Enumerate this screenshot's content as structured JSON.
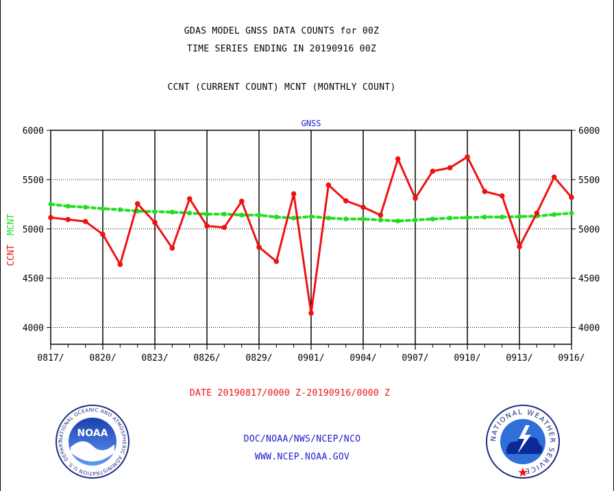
{
  "header": {
    "title_line1": "GDAS MODEL GNSS DATA COUNTS for 00Z",
    "title_line2": "TIME SERIES ENDING IN 20190916 00Z",
    "subtitle": "CCNT (CURRENT COUNT) MCNT (MONTHLY COUNT)"
  },
  "footer": {
    "date_range": "DATE 20190817/0000 Z-20190916/0000 Z",
    "org_line": "DOC/NOAA/NWS/NCEP/NCO",
    "url_line": "WWW.NCEP.NOAA.GOV"
  },
  "logos": {
    "noaa": {
      "text": "NOAA",
      "ring_text": "NATIONAL OCEANIC AND ATMOSPHERIC ADMINISTRATION U.S. DEPARTMENT OF COMMERCE"
    },
    "nws": {
      "ring_text": "NATIONAL WEATHER SERVICE"
    }
  },
  "chart_data": {
    "type": "line",
    "title": "GNSS",
    "ylabel_ccnt": "CCNT",
    "ylabel_mcnt": "MCNT",
    "ylim": [
      3830,
      6000
    ],
    "yticks": [
      4000,
      4500,
      5000,
      5500,
      6000
    ],
    "ytick_labels": [
      "4000",
      "4500",
      "5000",
      "5500",
      "6000"
    ],
    "x": [
      "0817",
      "0818",
      "0819",
      "0820",
      "0821",
      "0822",
      "0823",
      "0824",
      "0825",
      "0826",
      "0827",
      "0828",
      "0829",
      "0830",
      "0831",
      "0901",
      "0902",
      "0903",
      "0904",
      "0905",
      "0906",
      "0907",
      "0908",
      "0909",
      "0910",
      "0911",
      "0912",
      "0913",
      "0914",
      "0915",
      "0916"
    ],
    "xtick_labels": [
      "0817/",
      "0820/",
      "0823/",
      "0826/",
      "0829/",
      "0901/",
      "0904/",
      "0907/",
      "0910/",
      "0913/",
      "0916/"
    ],
    "grid": true,
    "colors": {
      "ccnt": "#ee1111",
      "mcnt": "#22dd22",
      "title": "#1a1acc",
      "footer_org": "#1a1acc",
      "footer_date": "#ee1111"
    },
    "series": [
      {
        "name": "CCNT",
        "values": [
          5115,
          5095,
          5075,
          4945,
          4640,
          5255,
          5065,
          4805,
          5305,
          5030,
          5015,
          5280,
          4815,
          4670,
          5355,
          4145,
          5445,
          5285,
          5220,
          5140,
          5710,
          5310,
          5585,
          5620,
          5730,
          5380,
          5335,
          4820,
          5160,
          5525,
          5320
        ]
      },
      {
        "name": "MCNT",
        "values": [
          5250,
          5230,
          5220,
          5205,
          5195,
          5180,
          5175,
          5170,
          5160,
          5150,
          5150,
          5140,
          5140,
          5120,
          5110,
          5125,
          5110,
          5100,
          5100,
          5090,
          5080,
          5090,
          5100,
          5110,
          5115,
          5120,
          5120,
          5125,
          5130,
          5145,
          5160
        ]
      }
    ]
  }
}
